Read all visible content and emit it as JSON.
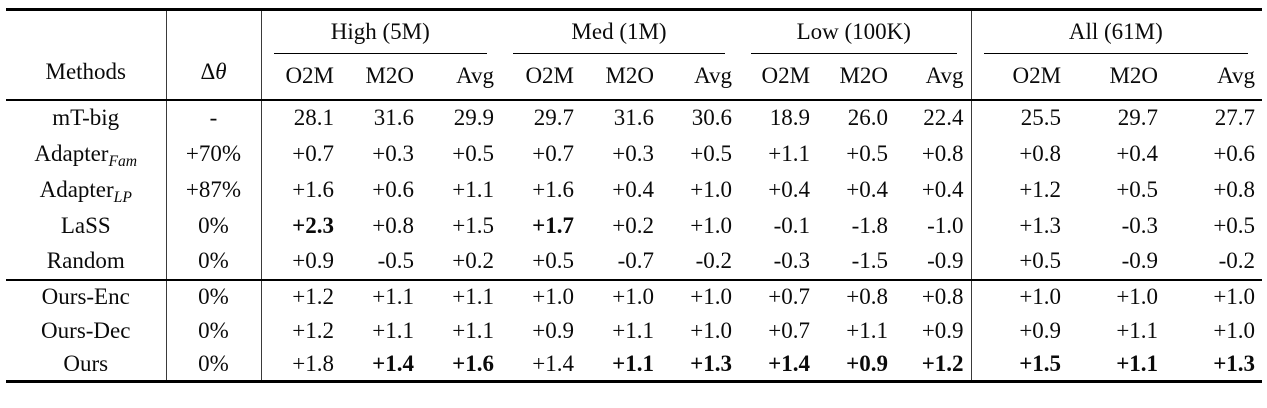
{
  "colors": {
    "text": "#0a0a0a",
    "rule": "#000000",
    "vline": "#3a3a3a",
    "bg": "#ffffff"
  },
  "table": {
    "header": {
      "methods": "Methods",
      "delta_symbol": "Δ",
      "theta_symbol": "θ",
      "groups": [
        "High (5M)",
        "Med (1M)",
        "Low (100K)",
        "All (61M)"
      ],
      "subheaders": [
        "O2M",
        "M2O",
        "Avg"
      ]
    },
    "sections": [
      {
        "name": "baselines",
        "rows": [
          {
            "method": "mT-big",
            "method_sub": "",
            "delta": "-",
            "values": [
              "28.1",
              "31.6",
              "29.9",
              "29.7",
              "31.6",
              "30.6",
              "18.9",
              "26.0",
              "22.4",
              "25.5",
              "29.7",
              "27.7"
            ],
            "bold": []
          },
          {
            "method": "Adapter",
            "method_sub": "Fam",
            "delta": "+70%",
            "values": [
              "+0.7",
              "+0.3",
              "+0.5",
              "+0.7",
              "+0.3",
              "+0.5",
              "+1.1",
              "+0.5",
              "+0.8",
              "+0.8",
              "+0.4",
              "+0.6"
            ],
            "bold": []
          },
          {
            "method": "Adapter",
            "method_sub": "LP",
            "delta": "+87%",
            "values": [
              "+1.6",
              "+0.6",
              "+1.1",
              "+1.6",
              "+0.4",
              "+1.0",
              "+0.4",
              "+0.4",
              "+0.4",
              "+1.2",
              "+0.5",
              "+0.8"
            ],
            "bold": []
          },
          {
            "method": "LaSS",
            "method_sub": "",
            "delta": "0%",
            "values": [
              "+2.3",
              "+0.8",
              "+1.5",
              "+1.7",
              "+0.2",
              "+1.0",
              "-0.1",
              "-1.8",
              "-1.0",
              "+1.3",
              "-0.3",
              "+0.5"
            ],
            "bold": [
              0,
              3
            ]
          },
          {
            "method": "Random",
            "method_sub": "",
            "delta": "0%",
            "values": [
              "+0.9",
              "-0.5",
              "+0.2",
              "+0.5",
              "-0.7",
              "-0.2",
              "-0.3",
              "-1.5",
              "-0.9",
              "+0.5",
              "-0.9",
              "-0.2"
            ],
            "bold": []
          }
        ]
      },
      {
        "name": "ours",
        "rows": [
          {
            "method": "Ours-Enc",
            "method_sub": "",
            "delta": "0%",
            "values": [
              "+1.2",
              "+1.1",
              "+1.1",
              "+1.0",
              "+1.0",
              "+1.0",
              "+0.7",
              "+0.8",
              "+0.8",
              "+1.0",
              "+1.0",
              "+1.0"
            ],
            "bold": []
          },
          {
            "method": "Ours-Dec",
            "method_sub": "",
            "delta": "0%",
            "values": [
              "+1.2",
              "+1.1",
              "+1.1",
              "+0.9",
              "+1.1",
              "+1.0",
              "+0.7",
              "+1.1",
              "+0.9",
              "+0.9",
              "+1.1",
              "+1.0"
            ],
            "bold": []
          },
          {
            "method": "Ours",
            "method_sub": "",
            "delta": "0%",
            "values": [
              "+1.8",
              "+1.4",
              "+1.6",
              "+1.4",
              "+1.1",
              "+1.3",
              "+1.4",
              "+0.9",
              "+1.2",
              "+1.5",
              "+1.1",
              "+1.3"
            ],
            "bold": [
              1,
              2,
              4,
              5,
              6,
              7,
              8,
              9,
              10,
              11
            ]
          }
        ]
      }
    ]
  }
}
